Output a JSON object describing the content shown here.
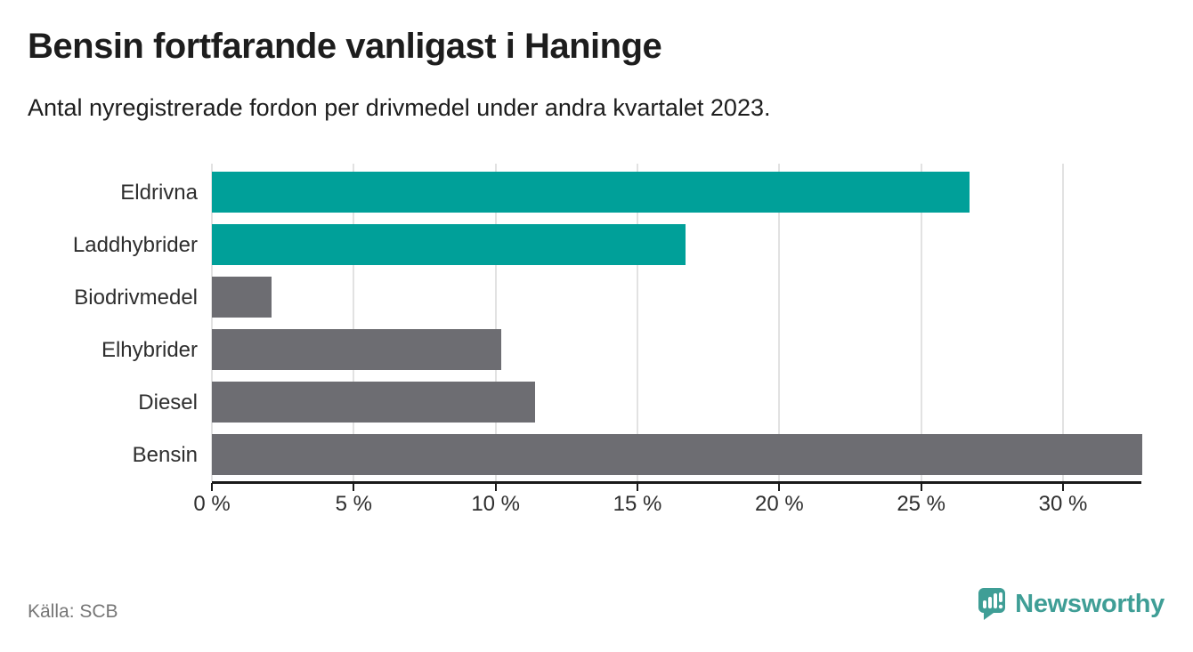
{
  "header": {
    "title": "Bensin fortfarande vanligast i Haninge",
    "subtitle": "Antal nyregistrerade fordon per drivmedel under andra kvartalet 2023."
  },
  "chart_data": {
    "type": "bar",
    "orientation": "horizontal",
    "title": "Bensin fortfarande vanligast i Haninge",
    "subtitle": "Antal nyregistrerade fordon per drivmedel under andra kvartalet 2023.",
    "categories": [
      "Eldrivna",
      "Laddhybrider",
      "Biodrivmedel",
      "Elhybrider",
      "Diesel",
      "Bensin"
    ],
    "values": [
      26.7,
      16.7,
      2.1,
      10.2,
      11.4,
      32.8
    ],
    "unit": "%",
    "bar_colors": [
      "#00a099",
      "#00a099",
      "#6d6d72",
      "#6d6d72",
      "#6d6d72",
      "#6d6d72"
    ],
    "x_ticks": [
      0,
      5,
      10,
      15,
      20,
      25,
      30
    ],
    "x_tick_labels": [
      "0 %",
      "5 %",
      "10 %",
      "15 %",
      "20 %",
      "25 %",
      "30 %"
    ],
    "xlim": [
      0,
      33.2
    ],
    "grid": true,
    "legend": false,
    "xlabel": "",
    "ylabel": ""
  },
  "footer": {
    "source": "Källa: SCB",
    "brand": "Newsworthy"
  },
  "colors": {
    "accent_teal": "#00a099",
    "bar_gray": "#6d6d72",
    "logo_teal": "#3f9e96",
    "text_dark": "#1d1d1d",
    "text_medium": "#2e2e2e",
    "text_source": "#767676",
    "gridline": "#e2e2e2",
    "axis": "#1a1a1a"
  }
}
